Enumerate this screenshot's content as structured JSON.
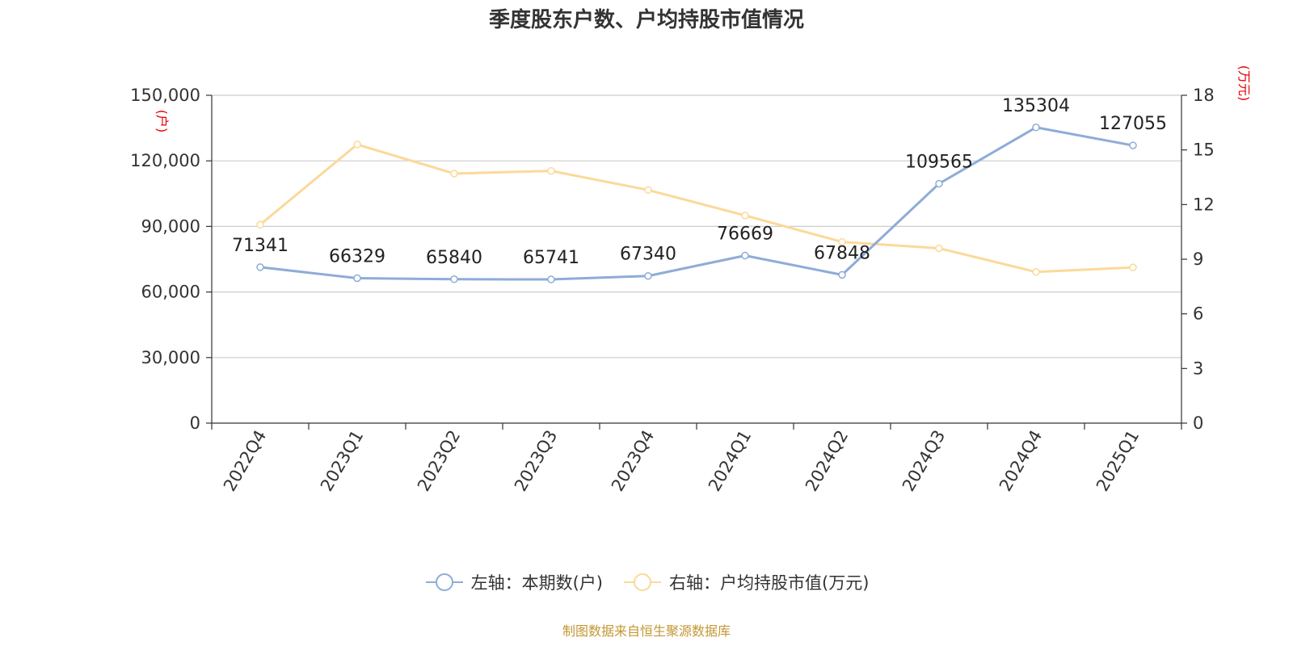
{
  "chart_data": {
    "type": "line",
    "title": "季度股东户数、户均持股市值情况",
    "categories": [
      "2022Q4",
      "2023Q1",
      "2023Q2",
      "2023Q3",
      "2023Q4",
      "2024Q1",
      "2024Q2",
      "2024Q3",
      "2024Q4",
      "2025Q1"
    ],
    "left_axis": {
      "unit": "(户)",
      "ylim": [
        0,
        150000
      ],
      "ticks": [
        "0",
        "30,000",
        "60,000",
        "90,000",
        "120,000",
        "150,000"
      ],
      "tick_values": [
        0,
        30000,
        60000,
        90000,
        120000,
        150000
      ]
    },
    "right_axis": {
      "unit": "(万元)",
      "ylim": [
        0,
        18
      ],
      "ticks": [
        "0",
        "3",
        "6",
        "9",
        "12",
        "15",
        "18"
      ],
      "tick_values": [
        0,
        3,
        6,
        9,
        12,
        15,
        18
      ]
    },
    "grid": true,
    "legend_position": "bottom",
    "series": [
      {
        "name": "左轴：本期数(户)",
        "axis": "left",
        "color": "#8eacd8",
        "values": [
          71341,
          66329,
          65840,
          65741,
          67340,
          76669,
          67848,
          109565,
          135304,
          127055
        ],
        "labels": [
          "71341",
          "66329",
          "65840",
          "65741",
          "67340",
          "76669",
          "67848",
          "109565",
          "135304",
          "127055"
        ]
      },
      {
        "name": "右轴：户均持股市值(万元)",
        "axis": "right",
        "color": "#fbd99a",
        "values": [
          10.9,
          15.3,
          13.7,
          13.85,
          12.8,
          11.4,
          9.95,
          9.6,
          8.3,
          8.55
        ]
      }
    ]
  },
  "source": "制图数据来自恒生聚源数据库"
}
